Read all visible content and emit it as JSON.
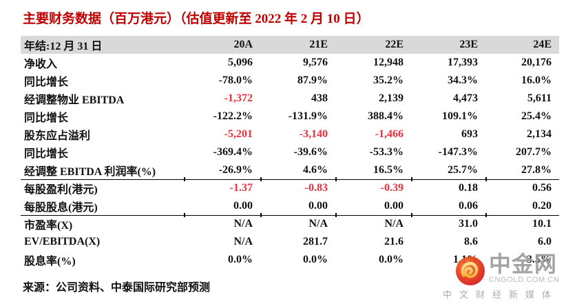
{
  "title": "主要财务数据（百万港元）（估值更新至 2022 年 2 月 10 日）",
  "table": {
    "header_label": "年结:12 月 31 日",
    "columns": [
      "20A",
      "21E",
      "22E",
      "23E",
      "24E"
    ],
    "rows": [
      {
        "label": "净收入",
        "values": [
          "5,096",
          "9,576",
          "12,948",
          "17,393",
          "20,176"
        ],
        "red": [
          false,
          false,
          false,
          false,
          false
        ],
        "sep": false
      },
      {
        "label": "同比增长",
        "values": [
          "-78.0%",
          "87.9%",
          "35.2%",
          "34.3%",
          "16.0%"
        ],
        "red": [
          false,
          false,
          false,
          false,
          false
        ],
        "sep": false
      },
      {
        "label": "经调整物业 EBITDA",
        "values": [
          "-1,372",
          "438",
          "2,139",
          "4,473",
          "5,611"
        ],
        "red": [
          true,
          false,
          false,
          false,
          false
        ],
        "sep": false
      },
      {
        "label": "同比增长",
        "values": [
          "-122.2%",
          "-131.9%",
          "388.4%",
          "109.1%",
          "25.4%"
        ],
        "red": [
          false,
          false,
          false,
          false,
          false
        ],
        "sep": false
      },
      {
        "label": "股东应占溢利",
        "values": [
          "-5,201",
          "-3,140",
          "-1,466",
          "693",
          "2,134"
        ],
        "red": [
          true,
          true,
          true,
          false,
          false
        ],
        "sep": false
      },
      {
        "label": "同比增长",
        "values": [
          "-369.4%",
          "-39.6%",
          "-53.3%",
          "-147.3%",
          "207.7%"
        ],
        "red": [
          false,
          false,
          false,
          false,
          false
        ],
        "sep": false
      },
      {
        "label": "经调整 EBITDA 利润率(%)",
        "values": [
          "-26.9%",
          "4.6%",
          "16.5%",
          "25.7%",
          "27.8%"
        ],
        "red": [
          false,
          false,
          false,
          false,
          false
        ],
        "sep": false
      },
      {
        "label": "每股盈利(港元)",
        "values": [
          "-1.37",
          "-0.83",
          "-0.39",
          "0.18",
          "0.56"
        ],
        "red": [
          true,
          true,
          true,
          false,
          false
        ],
        "sep": true
      },
      {
        "label": "每股股息(港元)",
        "values": [
          "0.00",
          "0.00",
          "0.00",
          "0.06",
          "0.20"
        ],
        "red": [
          false,
          false,
          false,
          false,
          false
        ],
        "sep": false
      },
      {
        "label": "市盈率(X)",
        "values": [
          "N/A",
          "N/A",
          "N/A",
          "31.0",
          "10.1"
        ],
        "red": [
          false,
          false,
          false,
          false,
          false
        ],
        "sep": true
      },
      {
        "label": "EV/EBITDA(X)",
        "values": [
          "N/A",
          "281.7",
          "21.6",
          "8.6",
          "6.0"
        ],
        "red": [
          false,
          false,
          false,
          false,
          false
        ],
        "sep": false
      },
      {
        "label": "股息率(%)",
        "values": [
          "0.0%",
          "0.0%",
          "0.0%",
          "1.1%",
          "3.5%"
        ],
        "red": [
          false,
          false,
          false,
          false,
          false
        ],
        "sep": false
      }
    ]
  },
  "source": "来源：公司资料、中泰国际研究部预测",
  "watermark": {
    "brand": "中金网",
    "domain": "CNGOLD.COM.CN",
    "tagline": "中文财经新媒体"
  },
  "colors": {
    "title_red": "#c00000",
    "negative_red": "#ee2f3e",
    "header_bg": "#d9d9d9",
    "text": "#111111",
    "rule": "#000000",
    "watermark_gray": "#9c9c9c",
    "logo_red": "#d81e20",
    "logo_orange": "#f4722a",
    "logo_gold": "#f7b425"
  }
}
